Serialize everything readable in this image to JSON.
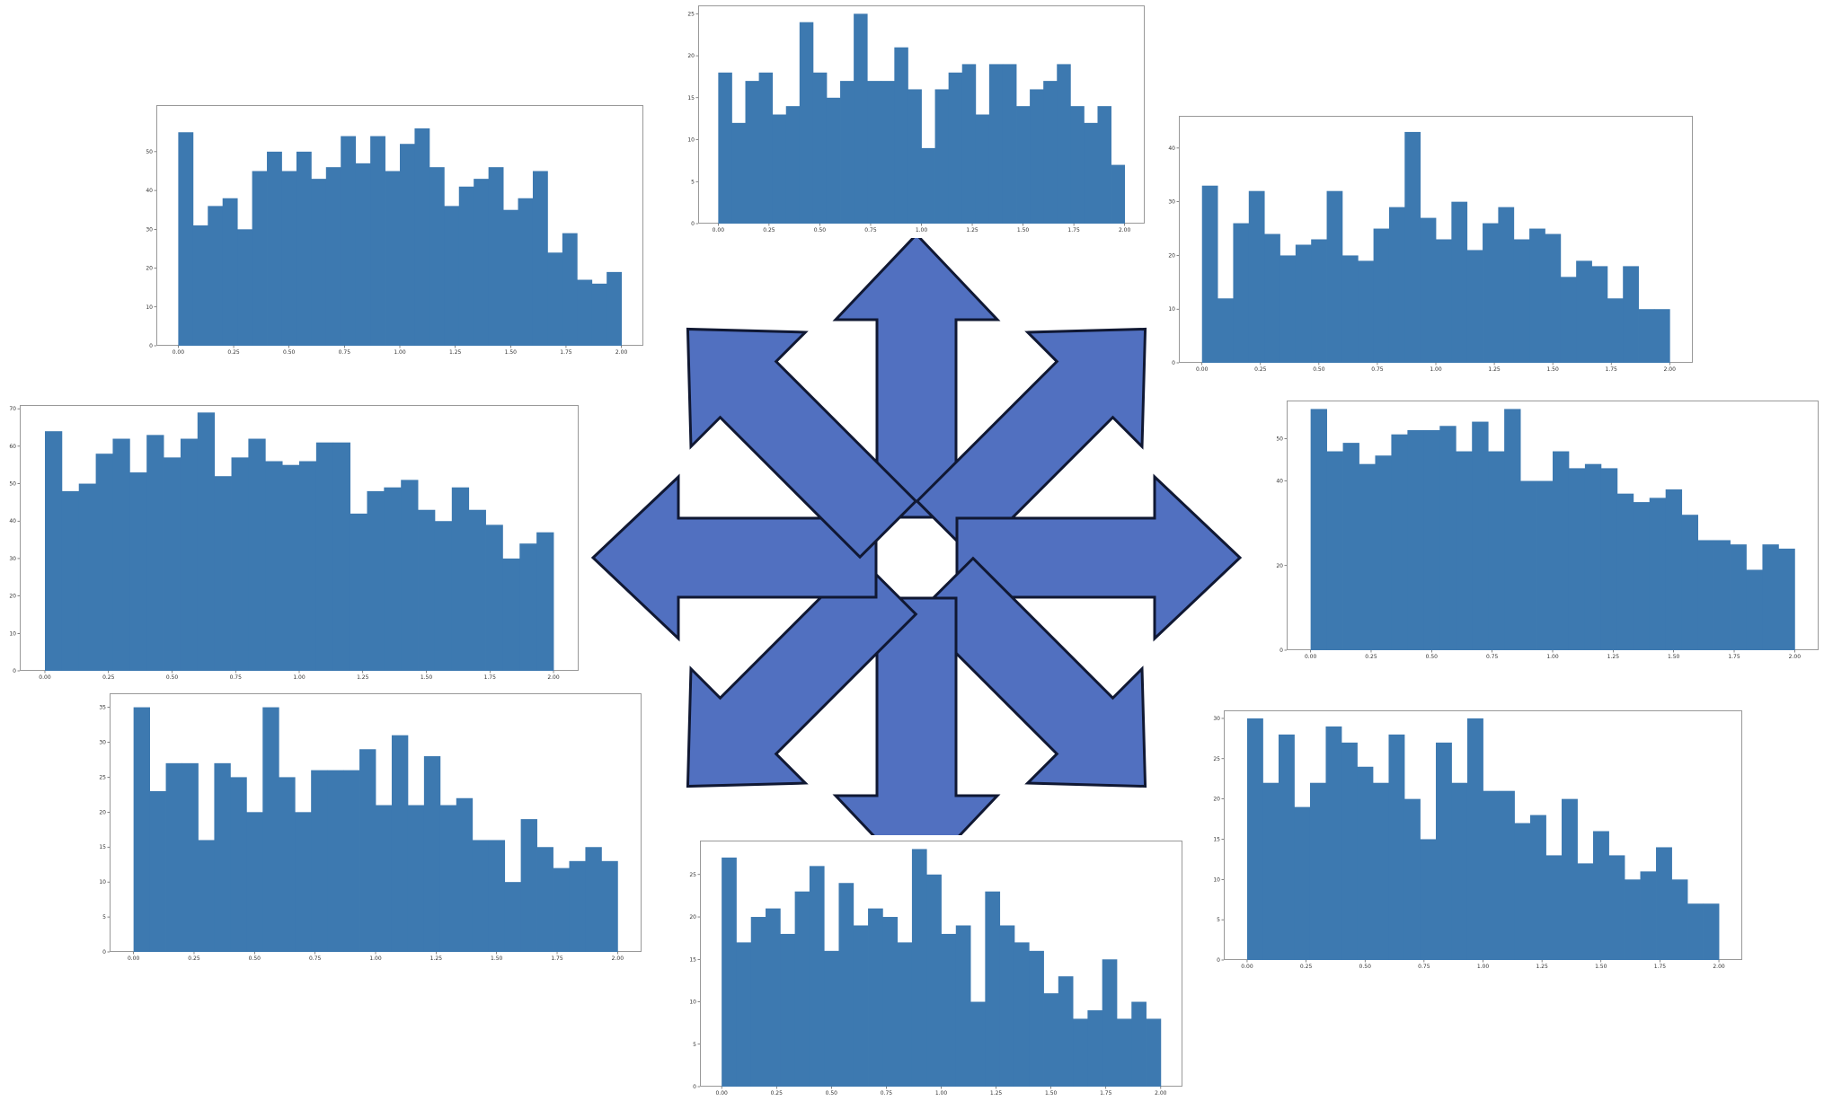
{
  "style": {
    "bar_color": "#3d79b0",
    "arrow_fill": "#5170c0",
    "arrow_stroke": "#101833"
  },
  "arrows": {
    "count": 8,
    "directions": [
      "up",
      "up-right",
      "right",
      "down-right",
      "down",
      "down-left",
      "left",
      "up-left"
    ],
    "icon": "outward-arrows-icon"
  },
  "chart_data": [
    {
      "id": "top-left",
      "type": "bar",
      "xlim": [
        0,
        2
      ],
      "ylim": [
        0,
        62
      ],
      "x_ticks": [
        "0.00",
        "0.25",
        "0.50",
        "0.75",
        "1.00",
        "1.25",
        "1.50",
        "1.75",
        "2.00"
      ],
      "y_ticks": [
        "0",
        "10",
        "20",
        "30",
        "40",
        "50"
      ],
      "bins": 30,
      "values": [
        55,
        31,
        36,
        38,
        30,
        45,
        50,
        45,
        50,
        43,
        46,
        54,
        47,
        54,
        45,
        52,
        56,
        46,
        36,
        41,
        43,
        46,
        35,
        38,
        45,
        24,
        29,
        17,
        16,
        19
      ]
    },
    {
      "id": "top-center",
      "type": "bar",
      "xlim": [
        0,
        2
      ],
      "ylim": [
        0,
        26
      ],
      "x_ticks": [
        "0.00",
        "0.25",
        "0.50",
        "0.75",
        "1.00",
        "1.25",
        "1.50",
        "1.75",
        "2.00"
      ],
      "y_ticks": [
        "0",
        "5",
        "10",
        "15",
        "20",
        "25"
      ],
      "bins": 30,
      "values": [
        18,
        12,
        17,
        18,
        13,
        14,
        24,
        18,
        15,
        17,
        25,
        17,
        17,
        21,
        16,
        9,
        16,
        18,
        19,
        13,
        19,
        19,
        14,
        16,
        17,
        19,
        14,
        12,
        14,
        7
      ]
    },
    {
      "id": "top-right",
      "type": "bar",
      "xlim": [
        0,
        2
      ],
      "ylim": [
        0,
        46
      ],
      "x_ticks": [
        "0.00",
        "0.25",
        "0.50",
        "0.75",
        "1.00",
        "1.25",
        "1.50",
        "1.75",
        "2.00"
      ],
      "y_ticks": [
        "0",
        "10",
        "20",
        "30",
        "40"
      ],
      "bins": 30,
      "values": [
        33,
        12,
        26,
        32,
        24,
        20,
        22,
        23,
        32,
        20,
        19,
        25,
        29,
        43,
        27,
        23,
        30,
        21,
        26,
        29,
        23,
        25,
        24,
        16,
        19,
        18,
        12,
        18,
        10,
        10
      ]
    },
    {
      "id": "middle-left",
      "type": "bar",
      "xlim": [
        0,
        2
      ],
      "ylim": [
        0,
        71
      ],
      "x_ticks": [
        "0.00",
        "0.25",
        "0.50",
        "0.75",
        "1.00",
        "1.25",
        "1.50",
        "1.75",
        "2.00"
      ],
      "y_ticks": [
        "0",
        "10",
        "20",
        "30",
        "40",
        "50",
        "60",
        "70"
      ],
      "bins": 30,
      "values": [
        64,
        48,
        50,
        58,
        62,
        53,
        63,
        57,
        62,
        69,
        52,
        57,
        62,
        56,
        55,
        56,
        61,
        61,
        42,
        48,
        49,
        51,
        43,
        40,
        49,
        43,
        39,
        30,
        34,
        37
      ]
    },
    {
      "id": "middle-right",
      "type": "bar",
      "xlim": [
        0,
        2
      ],
      "ylim": [
        0,
        59
      ],
      "x_ticks": [
        "0.00",
        "0.25",
        "0.50",
        "0.75",
        "1.00",
        "1.25",
        "1.50",
        "1.75",
        "2.00"
      ],
      "y_ticks": [
        "0",
        "20",
        "40",
        "50"
      ],
      "bins": 30,
      "values": [
        57,
        47,
        49,
        44,
        46,
        51,
        52,
        52,
        53,
        47,
        54,
        47,
        57,
        40,
        40,
        47,
        43,
        44,
        43,
        37,
        35,
        36,
        38,
        32,
        26,
        26,
        25,
        19,
        25,
        24
      ]
    },
    {
      "id": "bottom-left",
      "type": "bar",
      "xlim": [
        0,
        2
      ],
      "ylim": [
        0,
        37
      ],
      "x_ticks": [
        "0.00",
        "0.25",
        "0.50",
        "0.75",
        "1.00",
        "1.25",
        "1.50",
        "1.75",
        "2.00"
      ],
      "y_ticks": [
        "0",
        "5",
        "10",
        "15",
        "20",
        "25",
        "30",
        "35"
      ],
      "bins": 30,
      "values": [
        35,
        23,
        27,
        27,
        16,
        27,
        25,
        20,
        35,
        25,
        20,
        26,
        26,
        26,
        29,
        21,
        31,
        21,
        28,
        21,
        22,
        16,
        16,
        10,
        19,
        15,
        12,
        13,
        15,
        13
      ]
    },
    {
      "id": "bottom-center",
      "type": "bar",
      "xlim": [
        0,
        2
      ],
      "ylim": [
        0,
        29
      ],
      "x_ticks": [
        "0.00",
        "0.25",
        "0.50",
        "0.75",
        "1.00",
        "1.25",
        "1.50",
        "1.75",
        "2.00"
      ],
      "y_ticks": [
        "0",
        "5",
        "10",
        "15",
        "20",
        "25"
      ],
      "bins": 30,
      "values": [
        27,
        17,
        20,
        21,
        18,
        23,
        26,
        16,
        24,
        19,
        21,
        20,
        17,
        28,
        25,
        18,
        19,
        10,
        23,
        19,
        17,
        16,
        11,
        13,
        8,
        9,
        15,
        8,
        10,
        8
      ]
    },
    {
      "id": "bottom-right",
      "type": "bar",
      "xlim": [
        0,
        2
      ],
      "ylim": [
        0,
        31
      ],
      "x_ticks": [
        "0.00",
        "0.25",
        "0.50",
        "0.75",
        "1.00",
        "1.25",
        "1.50",
        "1.75",
        "2.00"
      ],
      "y_ticks": [
        "0",
        "5",
        "10",
        "15",
        "20",
        "25",
        "30"
      ],
      "bins": 30,
      "values": [
        30,
        22,
        28,
        19,
        22,
        29,
        27,
        24,
        22,
        28,
        20,
        15,
        27,
        22,
        30,
        21,
        21,
        17,
        18,
        13,
        20,
        12,
        16,
        13,
        10,
        11,
        14,
        10,
        7,
        7
      ]
    }
  ]
}
